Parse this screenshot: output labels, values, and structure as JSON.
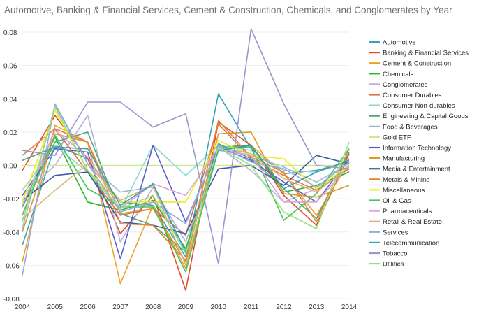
{
  "chart_data": {
    "type": "line",
    "title": "Automotive, Banking & Financial Services, Cement & Construction, Chemicals, and Conglomerates by Year",
    "xlabel": "",
    "ylabel": "",
    "x": [
      "2004",
      "2005",
      "2006",
      "2007",
      "2008",
      "2009",
      "2010",
      "2011",
      "2012",
      "2013",
      "2014"
    ],
    "ylim": [
      -0.08,
      0.08
    ],
    "yticks": [
      "0.08",
      "0.06",
      "0.04",
      "0.02",
      "0.00",
      "-0.02",
      "-0.04",
      "-0.06",
      "-0.08"
    ],
    "grid": true,
    "legend_position": "right",
    "series": [
      {
        "name": "Automotive",
        "color": "#36a2b8",
        "values": [
          -0.048,
          0.012,
          0.004,
          -0.022,
          -0.024,
          -0.055,
          0.043,
          0.01,
          -0.005,
          -0.003,
          0.002
        ]
      },
      {
        "name": "Banking & Financial Services",
        "color": "#e04b25",
        "values": [
          -0.003,
          0.03,
          0.004,
          -0.041,
          -0.018,
          -0.075,
          0.026,
          0.012,
          -0.018,
          -0.036,
          0.007
        ]
      },
      {
        "name": "Cement & Construction",
        "color": "#f2a02a",
        "values": [
          -0.058,
          0.024,
          0.014,
          -0.071,
          -0.024,
          -0.062,
          0.011,
          0.012,
          -0.005,
          -0.03,
          0.002
        ]
      },
      {
        "name": "Chemicals",
        "color": "#2bb52b",
        "values": [
          -0.024,
          0.017,
          -0.022,
          -0.027,
          -0.021,
          -0.05,
          0.011,
          0.012,
          -0.016,
          -0.012,
          -0.004
        ]
      },
      {
        "name": "Conglomerates",
        "color": "#b9b1da",
        "values": [
          -0.018,
          0.0,
          0.03,
          -0.046,
          -0.013,
          -0.052,
          0.011,
          -0.003,
          -0.022,
          -0.014,
          0.003
        ]
      },
      {
        "name": "Consumer Durables",
        "color": "#e57045",
        "values": [
          -0.03,
          0.022,
          -0.004,
          -0.03,
          -0.026,
          -0.042,
          0.025,
          0.004,
          -0.006,
          -0.015,
          -0.002
        ]
      },
      {
        "name": "Consumer Non-durables",
        "color": "#87d7d3",
        "values": [
          -0.015,
          0.012,
          -0.004,
          -0.027,
          0.012,
          -0.006,
          0.012,
          0.009,
          -0.003,
          -0.004,
          0.002
        ]
      },
      {
        "name": "Engineering & Capital Goods",
        "color": "#52a67a",
        "values": [
          -0.025,
          0.014,
          0.02,
          -0.029,
          -0.036,
          -0.052,
          0.013,
          0.004,
          -0.014,
          -0.032,
          0.008
        ]
      },
      {
        "name": "Food & Beverages",
        "color": "#9fb6d6",
        "values": [
          -0.038,
          0.036,
          0.001,
          -0.016,
          -0.013,
          -0.046,
          0.009,
          0.006,
          -0.001,
          -0.01,
          0.001
        ]
      },
      {
        "name": "Gold ETF",
        "color": "#cde890",
        "values": [
          0.0,
          0.0,
          0.0,
          0.0,
          0.0,
          0.0,
          0.0,
          0.0,
          0.0,
          0.0,
          0.0
        ]
      },
      {
        "name": "Information Technology",
        "color": "#5a5ecb",
        "values": [
          -0.018,
          0.01,
          0.008,
          -0.056,
          0.012,
          -0.034,
          0.011,
          0.003,
          -0.01,
          -0.022,
          0.004
        ]
      },
      {
        "name": "Manufacturing",
        "color": "#d99a2b",
        "values": [
          -0.04,
          0.019,
          0.014,
          -0.029,
          -0.026,
          -0.058,
          0.019,
          0.02,
          -0.017,
          -0.019,
          -0.012
        ]
      },
      {
        "name": "Media & Entertainment",
        "color": "#3d5a9e",
        "values": [
          -0.021,
          -0.006,
          -0.004,
          -0.034,
          -0.036,
          -0.041,
          -0.002,
          0.0,
          -0.012,
          0.006,
          0.001
        ]
      },
      {
        "name": "Metals & Mining",
        "color": "#e3863c",
        "values": [
          0.006,
          0.022,
          0.014,
          -0.035,
          -0.036,
          -0.057,
          0.027,
          0.005,
          -0.004,
          -0.034,
          0.01
        ]
      },
      {
        "name": "Miscellaneous",
        "color": "#eced1f",
        "values": [
          -0.022,
          0.033,
          -0.003,
          -0.022,
          -0.022,
          -0.022,
          0.015,
          0.006,
          0.004,
          -0.014,
          0.0
        ]
      },
      {
        "name": "Oil & Gas",
        "color": "#45c45c",
        "values": [
          -0.03,
          0.018,
          -0.014,
          -0.025,
          -0.025,
          -0.064,
          0.01,
          0.011,
          -0.033,
          -0.017,
          0.01
        ]
      },
      {
        "name": "Pharmaceuticals",
        "color": "#d8a5dc",
        "values": [
          -0.024,
          0.021,
          0.005,
          -0.026,
          -0.011,
          -0.018,
          0.01,
          0.006,
          -0.022,
          -0.022,
          0.0
        ]
      },
      {
        "name": "Retail & Real Estate",
        "color": "#d5b77c",
        "values": [
          -0.032,
          -0.015,
          0.001,
          -0.021,
          -0.012,
          -0.06,
          0.011,
          0.007,
          -0.008,
          -0.016,
          -0.001
        ]
      },
      {
        "name": "Services",
        "color": "#8faee0",
        "values": [
          -0.066,
          0.037,
          0.001,
          -0.028,
          -0.022,
          -0.035,
          0.012,
          0.002,
          -0.002,
          -0.013,
          0.002
        ]
      },
      {
        "name": "Telecommunication",
        "color": "#3b9dad",
        "values": [
          0.003,
          0.011,
          0.01,
          -0.024,
          -0.011,
          -0.052,
          0.009,
          0.012,
          -0.014,
          -0.004,
          0.003
        ]
      },
      {
        "name": "Tobacco",
        "color": "#9b95cf",
        "values": [
          0.009,
          0.006,
          0.038,
          0.038,
          0.023,
          0.031,
          -0.059,
          0.082,
          0.037,
          0.0,
          -0.002
        ]
      },
      {
        "name": "Utilities",
        "color": "#95e27c",
        "values": [
          -0.034,
          0.035,
          -0.003,
          -0.026,
          -0.018,
          -0.053,
          0.011,
          0.0,
          -0.028,
          -0.038,
          0.014
        ]
      }
    ]
  }
}
